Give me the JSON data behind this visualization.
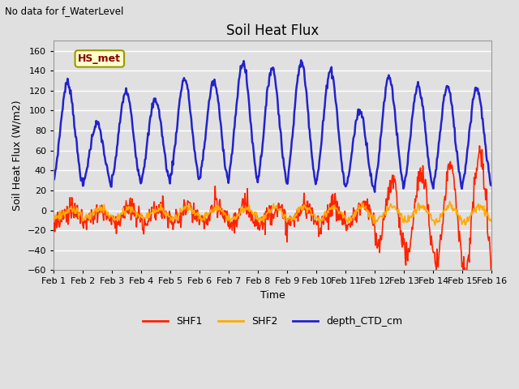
{
  "title": "Soil Heat Flux",
  "subtitle": "No data for f_WaterLevel",
  "ylabel": "Soil Heat Flux (W/m2)",
  "xlabel": "Time",
  "xlim_days": 15,
  "ylim": [
    -60,
    170
  ],
  "yticks": [
    -60,
    -40,
    -20,
    0,
    20,
    40,
    60,
    80,
    100,
    120,
    140,
    160
  ],
  "background_color": "#e0e0e0",
  "plot_bg_color": "#e0e0e0",
  "grid_color": "white",
  "legend_label": "HS_met",
  "legend_box_color": "#ffffcc",
  "legend_box_edge": "#999900",
  "series_colors": {
    "SHF1": "#ff2200",
    "SHF2": "#ffaa00",
    "depth_CTD_cm": "#2222cc"
  },
  "line_widths": {
    "SHF1": 1.2,
    "SHF2": 1.2,
    "depth_CTD_cm": 1.8
  }
}
